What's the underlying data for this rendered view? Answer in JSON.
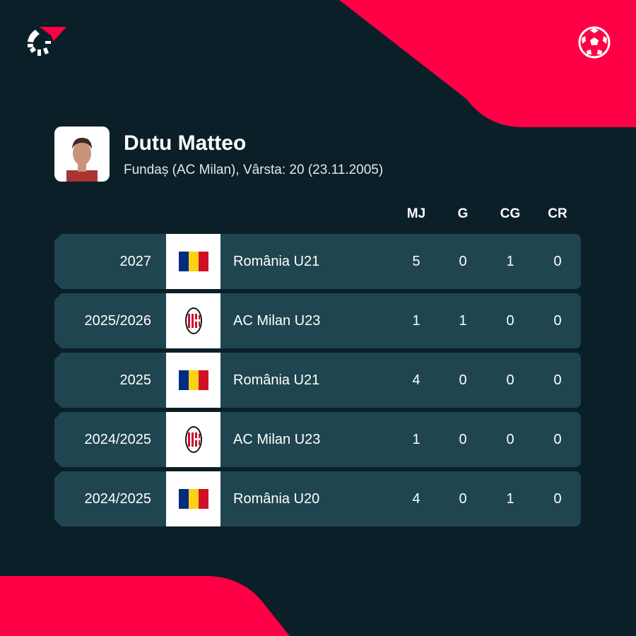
{
  "colors": {
    "background": "#0b1f29",
    "accent": "#ff0046",
    "row": "#1f4550"
  },
  "icons": {
    "logo": "flashscore-logo",
    "sport": "football-icon"
  },
  "player": {
    "name": "Dutu Matteo",
    "details": "Fundaș (AC Milan), Vârsta: 20 (23.11.2005)"
  },
  "columns": [
    "MJ",
    "G",
    "CG",
    "CR"
  ],
  "rows": [
    {
      "season": "2027",
      "team": "România U21",
      "badge": "romania-flag",
      "mj": "5",
      "g": "0",
      "cg": "1",
      "cr": "0"
    },
    {
      "season": "2025/2026",
      "team": "AC Milan U23",
      "badge": "ac-milan-crest",
      "mj": "1",
      "g": "1",
      "cg": "0",
      "cr": "0"
    },
    {
      "season": "2025",
      "team": "România U21",
      "badge": "romania-flag",
      "mj": "4",
      "g": "0",
      "cg": "0",
      "cr": "0"
    },
    {
      "season": "2024/2025",
      "team": "AC Milan U23",
      "badge": "ac-milan-crest",
      "mj": "1",
      "g": "0",
      "cg": "0",
      "cr": "0"
    },
    {
      "season": "2024/2025",
      "team": "România U20",
      "badge": "romania-flag",
      "mj": "4",
      "g": "0",
      "cg": "1",
      "cr": "0"
    }
  ]
}
